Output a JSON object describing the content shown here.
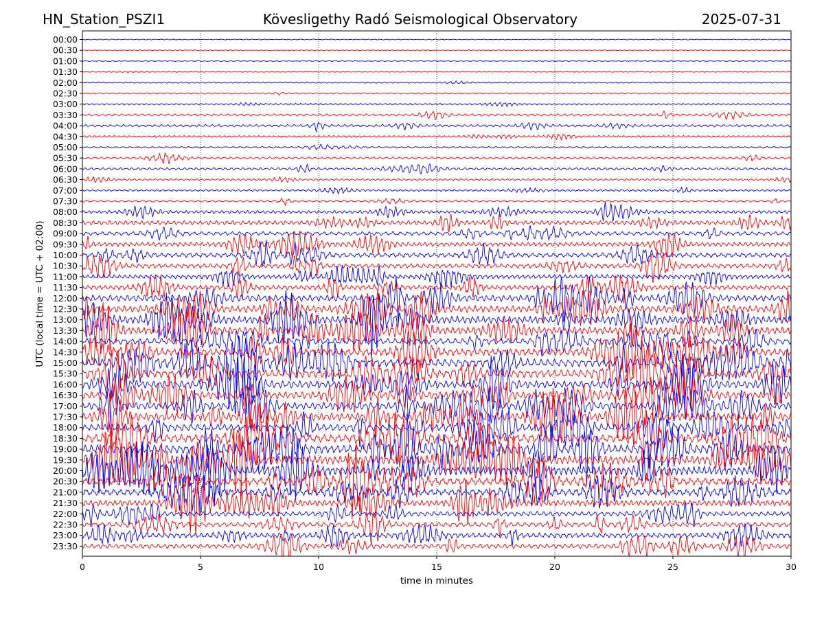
{
  "header": {
    "station": "HN_Station_PSZI1",
    "observatory": "Kövesligethy Radó Seismological Observatory",
    "date": "2025-07-31"
  },
  "chart_data": {
    "type": "line",
    "title": "Kövesligethy Radó Seismological Observatory",
    "xlabel": "time in minutes",
    "ylabel": "UTC (local time = UTC + 02:00)",
    "xlim": [
      0,
      30
    ],
    "x_ticks": [
      "0",
      "5",
      "10",
      "15",
      "20",
      "25",
      "30"
    ],
    "x_gridlines": [
      5,
      10,
      15,
      20,
      25
    ],
    "grid": "vertical dotted",
    "colors": {
      "even_rows": "#0000ff",
      "odd_rows": "#ff0000",
      "grid": "#000000"
    },
    "row_labels": [
      "00:00",
      "00:30",
      "01:00",
      "01:30",
      "02:00",
      "02:30",
      "03:00",
      "03:30",
      "04:00",
      "04:30",
      "05:00",
      "05:30",
      "06:00",
      "06:30",
      "07:00",
      "07:30",
      "08:00",
      "08:30",
      "09:00",
      "09:30",
      "10:00",
      "10:30",
      "11:00",
      "11:30",
      "12:00",
      "12:30",
      "13:00",
      "13:30",
      "14:00",
      "14:30",
      "15:00",
      "15:30",
      "16:00",
      "16:30",
      "17:00",
      "17:30",
      "18:00",
      "18:30",
      "19:00",
      "19:30",
      "20:00",
      "20:30",
      "21:00",
      "21:30",
      "22:00",
      "22:30",
      "23:00",
      "23:30"
    ],
    "row_activity": [
      0.05,
      0.05,
      0.04,
      0.06,
      0.12,
      0.1,
      0.2,
      0.35,
      0.4,
      0.3,
      0.2,
      0.35,
      0.4,
      0.3,
      0.3,
      0.3,
      0.55,
      0.8,
      0.7,
      0.8,
      0.9,
      0.9,
      0.8,
      0.9,
      1.3,
      1.4,
      1.5,
      1.5,
      1.2,
      1.5,
      1.6,
      1.6,
      1.5,
      1.5,
      1.5,
      1.6,
      1.4,
      1.7,
      1.8,
      1.8,
      1.8,
      1.5,
      1.3,
      1.2,
      0.9,
      0.9,
      1.0,
      0.9
    ]
  }
}
